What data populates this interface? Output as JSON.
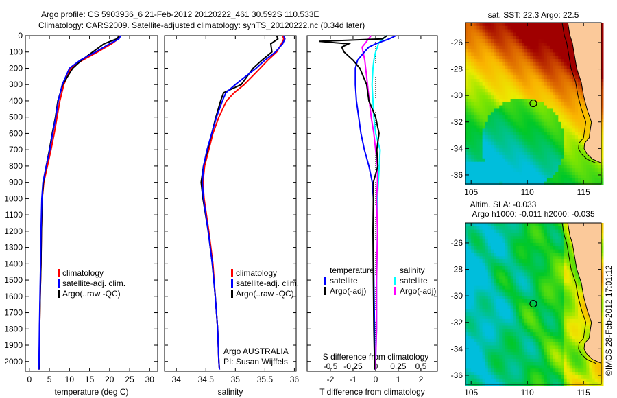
{
  "title": {
    "line1": "Argo profile: CS 5903936_6 21-Feb-2012 20120222_461 30.592S 110.533E",
    "line2": "Climatology: CARS2009. Satellite-adjusted climatology: synTS_20120222.nc (0.34d later)"
  },
  "credit": "©IMOS 28-Feb-2012 17:01:12",
  "colors": {
    "climatology": "#ff0000",
    "satellite": "#0000ff",
    "argo": "#000000",
    "sal_satellite": "#00ffff",
    "sal_argo": "#ff00ff",
    "land": "#fbc99a"
  },
  "chart_data": [
    {
      "type": "line",
      "xlabel": "temperature (deg C)",
      "ylabel": "depth",
      "xlim": [
        -1,
        32
      ],
      "ylim": [
        2060,
        0
      ],
      "xticks": [
        "0",
        "5",
        "10",
        "15",
        "20",
        "25",
        "30"
      ],
      "yticks": [
        "0",
        "100",
        "200",
        "300",
        "400",
        "500",
        "600",
        "700",
        "800",
        "900",
        "1000",
        "1100",
        "1200",
        "1300",
        "1400",
        "1500",
        "1600",
        "1700",
        "1800",
        "1900",
        "2000"
      ],
      "legend": [
        "climatology",
        "satellite-adj. clim.",
        "Argo(..raw -QC)"
      ],
      "depth": [
        0,
        20,
        50,
        100,
        150,
        200,
        300,
        400,
        500,
        600,
        700,
        800,
        900,
        1000,
        1200,
        1400,
        1600,
        1800,
        2000,
        2050
      ],
      "series": [
        {
          "name": "climatology",
          "values": [
            22.6,
            22.2,
            20.5,
            17.0,
            13.3,
            10.3,
            8.6,
            7.6,
            6.9,
            6.2,
            5.4,
            4.5,
            3.6,
            3.2,
            3.0,
            2.9,
            2.7,
            2.55,
            2.45,
            2.4
          ]
        },
        {
          "name": "satellite-adj. clim.",
          "values": [
            22.8,
            22.3,
            20.0,
            16.5,
            12.7,
            10.0,
            8.2,
            7.2,
            6.6,
            5.8,
            5.1,
            4.2,
            3.4,
            3.1,
            2.9,
            2.8,
            2.65,
            2.5,
            2.4,
            2.35
          ]
        },
        {
          "name": "Argo(..raw -QC)",
          "values": [
            22.4,
            21.8,
            18.6,
            15.8,
            13.0,
            10.8,
            8.3,
            7.1,
            6.5,
            5.7,
            5.0,
            4.2,
            3.5,
            3.2,
            3.0,
            2.9,
            2.7,
            2.55,
            2.45,
            2.4
          ]
        }
      ]
    },
    {
      "type": "line",
      "xlabel": "salinity",
      "xlim": [
        33.8,
        36.03
      ],
      "ylim": [
        2060,
        0
      ],
      "xticks": [
        "34",
        "34.5",
        "35",
        "35.5",
        "36"
      ],
      "legend": [
        "climatology",
        "satellite-adj. clim.",
        "Argo(..raw -QC)"
      ],
      "annotation": [
        "Argo AUSTRALIA",
        "PI: Susan Wijffels"
      ],
      "depth": [
        0,
        20,
        50,
        100,
        150,
        200,
        300,
        350,
        400,
        500,
        600,
        700,
        800,
        900,
        1000,
        1200,
        1400,
        1600,
        1800,
        2000,
        2050
      ],
      "series": [
        {
          "name": "climatology",
          "values": [
            35.8,
            35.82,
            35.78,
            35.7,
            35.55,
            35.42,
            35.15,
            34.98,
            34.85,
            34.72,
            34.62,
            34.55,
            34.48,
            34.45,
            34.47,
            34.55,
            34.62,
            34.66,
            34.7,
            34.72,
            34.73
          ]
        },
        {
          "name": "satellite-adj. clim.",
          "values": [
            35.82,
            35.84,
            35.8,
            35.68,
            35.5,
            35.35,
            35.0,
            34.84,
            34.78,
            34.68,
            34.6,
            34.52,
            34.46,
            34.44,
            34.46,
            34.54,
            34.61,
            34.66,
            34.7,
            34.72,
            34.73
          ]
        },
        {
          "name": "Argo(..raw -QC)",
          "values": [
            35.7,
            35.72,
            35.6,
            35.62,
            35.45,
            35.3,
            35.1,
            34.8,
            34.75,
            34.67,
            34.6,
            34.53,
            34.46,
            34.42,
            34.45,
            34.54,
            34.61,
            34.66,
            34.7,
            34.72,
            34.73
          ]
        }
      ]
    },
    {
      "type": "line",
      "xlabel": "T difference from climatology",
      "x2label": "S difference from climatology",
      "xlim": [
        -3.03,
        2.73
      ],
      "ylim": [
        2060,
        0
      ],
      "xticks": [
        "-2",
        "-1",
        "0",
        "1",
        "2"
      ],
      "x2ticks": [
        "-0.5",
        "-0.25",
        "0",
        "0.25",
        "0.5"
      ],
      "legend": {
        "temperature": "temperature",
        "salinity": "salinity",
        "t_sat": "satellite",
        "t_argo": "Argo(-adj)",
        "s_sat": "satellite",
        "s_argo": "Argo(-adj)"
      },
      "depth": [
        0,
        20,
        35,
        50,
        70,
        100,
        150,
        200,
        300,
        400,
        500,
        600,
        700,
        800,
        900,
        1000,
        1200,
        1500,
        1800,
        2000,
        2050
      ],
      "series": [
        {
          "name": "temperature satellite",
          "values": [
            0.9,
            0.6,
            0.3,
            0.0,
            -0.3,
            -0.5,
            -0.8,
            -0.9,
            -0.9,
            -0.85,
            -0.75,
            -0.65,
            -0.5,
            -0.3,
            -0.15,
            -0.1,
            -0.1,
            -0.08,
            -0.05,
            -0.05,
            -0.05
          ]
        },
        {
          "name": "temperature Argo(-adj)",
          "values": [
            0.5,
            0.3,
            -2.5,
            -1.2,
            -1.5,
            -1.4,
            -1.0,
            -0.7,
            -0.4,
            -0.3,
            0.0,
            0.15,
            0.05,
            0.1,
            -0.1,
            -0.1,
            -0.12,
            -0.1,
            -0.08,
            -0.05,
            -0.05
          ]
        },
        {
          "name": "salinity satellite",
          "values": [
            0.12,
            0.08,
            0.05,
            0.03,
            0.02,
            0.0,
            -0.02,
            -0.03,
            -0.04,
            -0.03,
            -0.02,
            0.0,
            0.05,
            0.04,
            0.03,
            0.02,
            0.02,
            0.01,
            0.01,
            0.0,
            0.0
          ]
        },
        {
          "name": "salinity Argo(-adj)",
          "values": [
            -0.05,
            -0.08,
            -0.1,
            -0.12,
            -0.15,
            -0.14,
            -0.12,
            -0.11,
            -0.09,
            -0.07,
            -0.05,
            -0.02,
            0.0,
            0.02,
            0.02,
            0.01,
            0.02,
            0.01,
            0.01,
            0.0,
            0.0
          ]
        }
      ]
    }
  ],
  "maps": [
    {
      "title": [
        "sat. SST: 22.3 Argo: 22.5"
      ],
      "kind": "sst"
    },
    {
      "title": [
        "Altim. SLA: -0.033",
        "Argo h1000: -0.011 h2000: -0.035"
      ],
      "kind": "sla"
    }
  ],
  "map_axes": {
    "lon_ticks": [
      "105",
      "110",
      "115"
    ],
    "lat_ticks": [
      "-26",
      "-28",
      "-30",
      "-32",
      "-34",
      "-36"
    ],
    "lonlim": [
      104.5,
      116.6
    ],
    "latlim": [
      -36.7,
      -24.5
    ],
    "float_position": {
      "lon": 110.533,
      "lat": -30.592
    }
  }
}
